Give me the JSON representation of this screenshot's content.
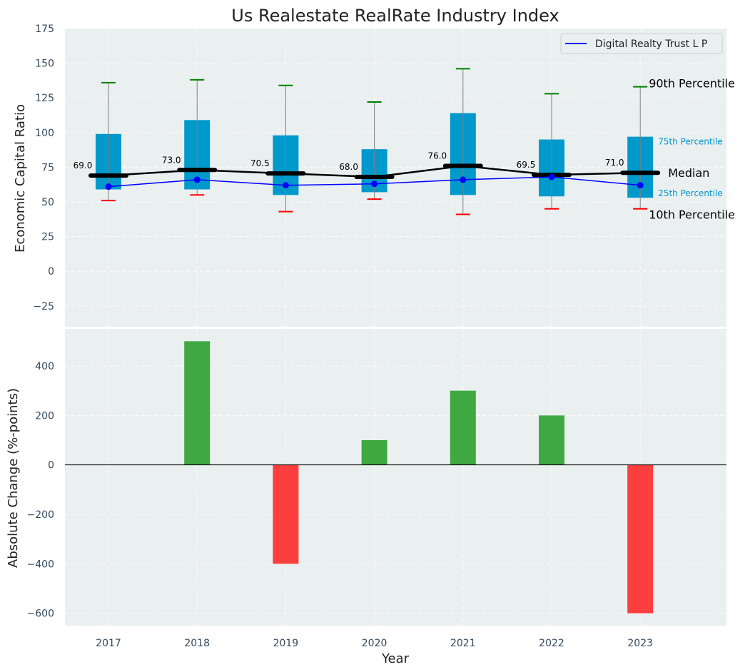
{
  "chart_data": [
    {
      "type": "box",
      "title": "Us Realestate RealRate Industry Index",
      "ylabel": "Economic Capital Ratio",
      "ylim": [
        -40,
        175
      ],
      "yticks": [
        -25,
        0,
        25,
        50,
        75,
        100,
        125,
        150,
        175
      ],
      "categories": [
        "2017",
        "2018",
        "2019",
        "2020",
        "2021",
        "2022",
        "2023"
      ],
      "boxes": [
        {
          "p10": 51,
          "q1": 59,
          "median": 69.0,
          "q3": 99,
          "p90": 136
        },
        {
          "p10": 55,
          "q1": 59,
          "median": 73.0,
          "q3": 109,
          "p90": 138
        },
        {
          "p10": 43,
          "q1": 55,
          "median": 70.5,
          "q3": 98,
          "p90": 134
        },
        {
          "p10": 52,
          "q1": 57,
          "median": 68.0,
          "q3": 88,
          "p90": 122
        },
        {
          "p10": 41,
          "q1": 55,
          "median": 76.0,
          "q3": 114,
          "p90": 146
        },
        {
          "p10": 45,
          "q1": 54,
          "median": 69.5,
          "q3": 95,
          "p90": 128
        },
        {
          "p10": 45,
          "q1": 53,
          "median": 71.0,
          "q3": 97,
          "p90": 133
        }
      ],
      "median_labels": [
        "69.0",
        "73.0",
        "70.5",
        "68.0",
        "76.0",
        "69.5",
        "71.0"
      ],
      "series": [
        {
          "name": "Digital Realty Trust L P",
          "values": [
            61,
            66,
            62,
            63,
            66,
            68,
            62
          ]
        }
      ],
      "legend_position": "top-right",
      "annotations": {
        "p90": "90th Percentile",
        "q3": "75th Percentile",
        "median": "Median",
        "q1": "25th Percentile",
        "p10": "10th Percentile"
      },
      "colors": {
        "box": "#0099cc",
        "median": "#000000",
        "series": "#0000ff",
        "p90_cap": "#008000",
        "p10_cap": "#ff0000",
        "whisker": "#808080",
        "annotation_quartile": "#0099cc",
        "background": "#eaeff0"
      },
      "grid": true
    },
    {
      "type": "bar",
      "xlabel": "Year",
      "ylabel": "Absolute Change (%-points)",
      "ylim": [
        -650,
        550
      ],
      "yticks": [
        -600,
        -400,
        -200,
        0,
        200,
        400
      ],
      "categories": [
        "2017",
        "2018",
        "2019",
        "2020",
        "2021",
        "2022",
        "2023"
      ],
      "values": [
        0,
        500,
        -400,
        100,
        300,
        200,
        -600
      ],
      "colors": {
        "positive": "#2ca02c",
        "negative": "#ff2a2a",
        "zero_line": "#000000"
      },
      "grid": true
    }
  ]
}
